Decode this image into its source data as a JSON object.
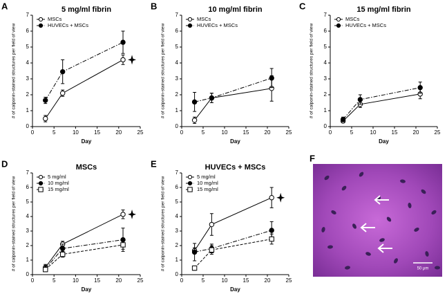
{
  "chart_data": [
    {
      "type": "line",
      "label": "A",
      "title": "5 mg/ml fibrin",
      "x_label": "Day",
      "y_label": "# of calponin-stained structures per field of view",
      "x": [
        3,
        7,
        21
      ],
      "xlim": [
        0,
        25
      ],
      "xticks": [
        0,
        5,
        10,
        15,
        20,
        25
      ],
      "ylim": [
        0,
        7
      ],
      "yticks": [
        0,
        1,
        2,
        3,
        4,
        5,
        6,
        7
      ],
      "significance_marker": true,
      "series": [
        {
          "name": "MSCs",
          "color": "#000000",
          "marker": "open-circle",
          "dash": "solid",
          "values": [
            0.5,
            2.1,
            4.2
          ],
          "errors": [
            0.2,
            0.2,
            0.3
          ]
        },
        {
          "name": "HUVECs + MSCs",
          "color": "#000000",
          "marker": "filled-circle",
          "dash": "dashdot",
          "values": [
            1.65,
            3.45,
            5.3
          ],
          "errors": [
            0.2,
            0.75,
            0.7
          ]
        }
      ]
    },
    {
      "type": "line",
      "label": "B",
      "title": "10 mg/ml fibrin",
      "x_label": "Day",
      "y_label": "# of calponin-stained structures per field of view",
      "x": [
        3,
        7,
        21
      ],
      "xlim": [
        0,
        25
      ],
      "xticks": [
        0,
        5,
        10,
        15,
        20,
        25
      ],
      "ylim": [
        0,
        7
      ],
      "yticks": [
        0,
        1,
        2,
        3,
        4,
        5,
        6,
        7
      ],
      "significance_marker": false,
      "series": [
        {
          "name": "MSCs",
          "color": "#000000",
          "marker": "open-circle",
          "dash": "solid",
          "values": [
            0.4,
            1.8,
            2.4
          ],
          "errors": [
            0.2,
            0.3,
            0.8
          ]
        },
        {
          "name": "HUVECs + MSCs",
          "color": "#000000",
          "marker": "filled-circle",
          "dash": "dashdot",
          "values": [
            1.55,
            1.8,
            3.05
          ],
          "errors": [
            0.6,
            0.3,
            0.6
          ]
        }
      ]
    },
    {
      "type": "line",
      "label": "C",
      "title": "15 mg/ml fibrin",
      "x_label": "Day",
      "y_label": "# of calponin-stained structures per field of view",
      "x": [
        3,
        7,
        21
      ],
      "xlim": [
        0,
        25
      ],
      "xticks": [
        0,
        5,
        10,
        15,
        20,
        25
      ],
      "ylim": [
        0,
        7
      ],
      "yticks": [
        0,
        1,
        2,
        3,
        4,
        5,
        6,
        7
      ],
      "significance_marker": false,
      "series": [
        {
          "name": "MSCs",
          "color": "#000000",
          "marker": "open-circle",
          "dash": "solid",
          "values": [
            0.35,
            1.4,
            2.05
          ],
          "errors": [
            0.1,
            0.2,
            0.3
          ]
        },
        {
          "name": "HUVECs + MSCs",
          "color": "#000000",
          "marker": "filled-circle",
          "dash": "dashdot",
          "values": [
            0.45,
            1.7,
            2.45
          ],
          "errors": [
            0.15,
            0.3,
            0.35
          ]
        }
      ]
    },
    {
      "type": "line",
      "label": "D",
      "title": "MSCs",
      "x_label": "Day",
      "y_label": "# of calponin-stained structures per field of view",
      "x": [
        3,
        7,
        21
      ],
      "xlim": [
        0,
        25
      ],
      "xticks": [
        0,
        5,
        10,
        15,
        20,
        25
      ],
      "ylim": [
        0,
        7
      ],
      "yticks": [
        0,
        1,
        2,
        3,
        4,
        5,
        6,
        7
      ],
      "significance_marker": true,
      "series": [
        {
          "name": "5 mg/ml",
          "color": "#000000",
          "marker": "open-circle",
          "dash": "solid",
          "values": [
            0.5,
            2.1,
            4.15
          ],
          "errors": [
            0.2,
            0.2,
            0.3
          ]
        },
        {
          "name": "10 mg/ml",
          "color": "#000000",
          "marker": "filled-circle",
          "dash": "dashdot",
          "values": [
            0.4,
            1.8,
            2.4
          ],
          "errors": [
            0.2,
            0.3,
            0.8
          ]
        },
        {
          "name": "15 mg/ml",
          "color": "#000000",
          "marker": "open-square",
          "dash": "dashed",
          "values": [
            0.35,
            1.4,
            2.05
          ],
          "errors": [
            0.1,
            0.2,
            0.3
          ]
        }
      ]
    },
    {
      "type": "line",
      "label": "E",
      "title": "HUVECs + MSCs",
      "x_label": "Day",
      "y_label": "# of calponin-stained structures per field of view",
      "x": [
        3,
        7,
        21
      ],
      "xlim": [
        0,
        25
      ],
      "xticks": [
        0,
        5,
        10,
        15,
        20,
        25
      ],
      "ylim": [
        0,
        7
      ],
      "yticks": [
        0,
        1,
        2,
        3,
        4,
        5,
        6,
        7
      ],
      "significance_marker": true,
      "series": [
        {
          "name": "5 mg/ml",
          "color": "#000000",
          "marker": "open-circle",
          "dash": "solid",
          "values": [
            1.65,
            3.45,
            5.3
          ],
          "errors": [
            0.2,
            0.75,
            0.7
          ]
        },
        {
          "name": "10 mg/ml",
          "color": "#000000",
          "marker": "filled-circle",
          "dash": "dashdot",
          "values": [
            1.55,
            1.8,
            3.05
          ],
          "errors": [
            0.6,
            0.3,
            0.6
          ]
        },
        {
          "name": "15 mg/ml",
          "color": "#000000",
          "marker": "open-square",
          "dash": "dashed",
          "values": [
            0.45,
            1.7,
            2.45
          ],
          "errors": [
            0.15,
            0.3,
            0.35
          ]
        }
      ]
    },
    {
      "type": "image",
      "label": "F",
      "scale_bar": "50 μm"
    }
  ]
}
